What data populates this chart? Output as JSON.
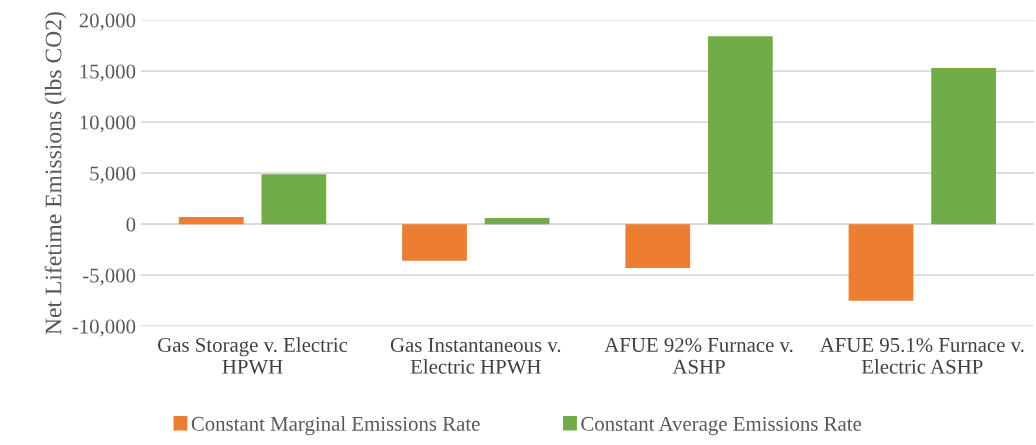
{
  "chart_data": {
    "type": "bar",
    "ylabel": "Net Lifetime Emissions (lbs CO2)",
    "categories": [
      "Gas Storage v. Electric HPWH",
      "Gas Instantaneous v. Electric HPWH",
      "AFUE 92% Furnace v. ASHP",
      "AFUE 95.1% Furnace v. Electric ASHP"
    ],
    "series": [
      {
        "name": "Constant Marginal Emissions Rate",
        "color": "#ed7d31",
        "values": [
          700,
          -3600,
          -4300,
          -7500
        ]
      },
      {
        "name": "Constant Average Emissions Rate",
        "color": "#70ad47",
        "values": [
          4900,
          600,
          18400,
          15300
        ]
      }
    ],
    "ylim": [
      -10000,
      20000
    ],
    "yticks": [
      {
        "value": -10000,
        "label": "-10,000"
      },
      {
        "value": -5000,
        "label": "-5,000"
      },
      {
        "value": 0,
        "label": "0"
      },
      {
        "value": 5000,
        "label": "5,000"
      },
      {
        "value": 10000,
        "label": "10,000"
      },
      {
        "value": 15000,
        "label": "15,000"
      },
      {
        "value": 20000,
        "label": "20,000"
      }
    ],
    "grid": "y",
    "legend": "bottom"
  }
}
